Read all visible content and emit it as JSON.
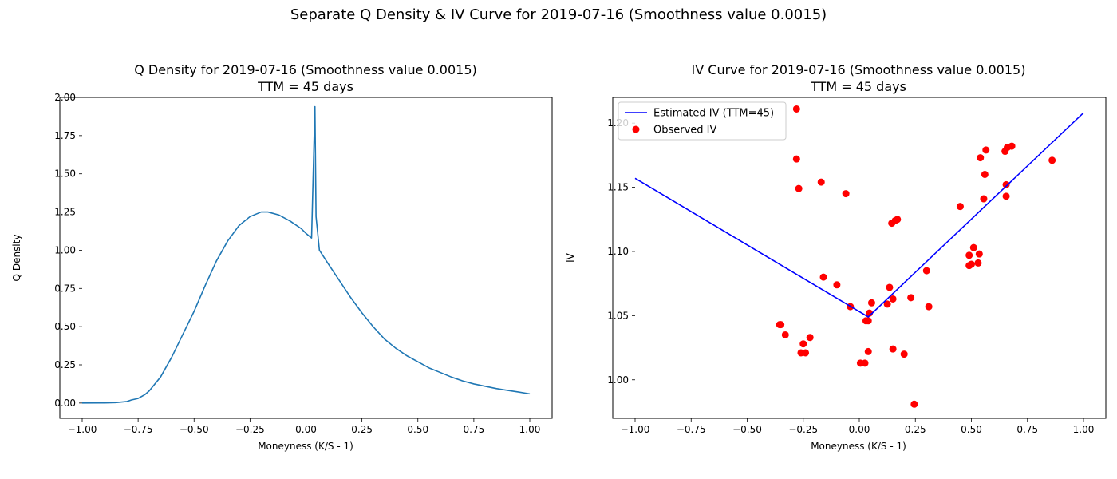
{
  "figure": {
    "suptitle": "Separate Q Density & IV Curve for 2019-07-16 (Smoothness value 0.0015)"
  },
  "chart_data": [
    {
      "type": "line",
      "title_line1": "Q Density for 2019-07-16 (Smoothness value 0.0015)",
      "title_line2": "TTM = 45 days",
      "xlabel": "Moneyness (K/S - 1)",
      "ylabel": "Q Density",
      "xlim": [
        -1.0,
        1.0
      ],
      "ylim": [
        -0.1,
        2.0
      ],
      "xticks": [
        -1.0,
        -0.75,
        -0.5,
        -0.25,
        0.0,
        0.25,
        0.5,
        0.75,
        1.0
      ],
      "xtick_labels": [
        "−1.00",
        "−0.75",
        "−0.50",
        "−0.25",
        "0.00",
        "0.25",
        "0.50",
        "0.75",
        "1.00"
      ],
      "yticks": [
        0.0,
        0.25,
        0.5,
        0.75,
        1.0,
        1.25,
        1.5,
        1.75,
        2.0
      ],
      "ytick_labels": [
        "0.00",
        "0.25",
        "0.50",
        "0.75",
        "1.00",
        "1.25",
        "1.50",
        "1.75",
        "2.00"
      ],
      "grid": false,
      "color": "#1f77b4",
      "series": [
        {
          "x": [
            -1.0,
            -0.9,
            -0.85,
            -0.8,
            -0.78,
            -0.75,
            -0.72,
            -0.7,
            -0.65,
            -0.6,
            -0.55,
            -0.5,
            -0.45,
            -0.4,
            -0.35,
            -0.3,
            -0.25,
            -0.2,
            -0.17,
            -0.12,
            -0.07,
            -0.02,
            0.0,
            0.025,
            0.04,
            0.045,
            0.06,
            0.1,
            0.15,
            0.2,
            0.25,
            0.3,
            0.35,
            0.4,
            0.45,
            0.5,
            0.55,
            0.6,
            0.65,
            0.7,
            0.75,
            0.8,
            0.85,
            0.9,
            0.95,
            1.0
          ],
          "y": [
            0.0,
            0.001,
            0.003,
            0.01,
            0.02,
            0.03,
            0.055,
            0.08,
            0.17,
            0.3,
            0.45,
            0.6,
            0.77,
            0.93,
            1.06,
            1.16,
            1.22,
            1.25,
            1.25,
            1.23,
            1.19,
            1.14,
            1.11,
            1.08,
            1.94,
            1.22,
            1.0,
            0.91,
            0.8,
            0.69,
            0.59,
            0.5,
            0.42,
            0.36,
            0.31,
            0.27,
            0.23,
            0.2,
            0.17,
            0.145,
            0.125,
            0.11,
            0.095,
            0.083,
            0.072,
            0.06
          ]
        }
      ]
    },
    {
      "type": "scatter",
      "title_line1": "IV Curve for 2019-07-16 (Smoothness value 0.0015)",
      "title_line2": "TTM = 45 days",
      "xlabel": "Moneyness (K/S - 1)",
      "ylabel": "IV",
      "xlim": [
        -1.0,
        1.0
      ],
      "ylim": [
        0.97,
        1.22
      ],
      "xticks": [
        -1.0,
        -0.75,
        -0.5,
        -0.25,
        0.0,
        0.25,
        0.5,
        0.75,
        1.0
      ],
      "xtick_labels": [
        "−1.00",
        "−0.75",
        "−0.50",
        "−0.25",
        "0.00",
        "0.25",
        "0.50",
        "0.75",
        "1.00"
      ],
      "yticks": [
        1.0,
        1.05,
        1.1,
        1.15,
        1.2
      ],
      "ytick_labels": [
        "1.00",
        "1.05",
        "1.10",
        "1.15",
        "1.20"
      ],
      "grid": false,
      "legend_position": "top-left",
      "series": [
        {
          "name": "Estimated IV (TTM=45)",
          "kind": "line",
          "color": "#0000ff",
          "x": [
            -1.0,
            0.04,
            1.0
          ],
          "y": [
            1.157,
            1.049,
            1.208
          ]
        },
        {
          "name": "Observed IV",
          "kind": "scatter",
          "color": "#ff0000",
          "x": [
            -0.28,
            -0.28,
            -0.27,
            -0.17,
            -0.06,
            0.17,
            0.16,
            0.145,
            0.45,
            0.54,
            0.565,
            0.56,
            0.65,
            0.66,
            0.68,
            0.86,
            0.655,
            0.555,
            0.655,
            0.51,
            0.49,
            0.535,
            0.53,
            0.5,
            0.49,
            0.3,
            0.135,
            0.125,
            0.15,
            0.23,
            0.055,
            0.045,
            0.04,
            0.03,
            -0.04,
            -0.1,
            -0.16,
            -0.35,
            -0.355,
            -0.33,
            -0.22,
            -0.25,
            -0.26,
            -0.24,
            0.04,
            0.15,
            0.2,
            0.005,
            0.025,
            0.245,
            0.31
          ],
          "y": [
            1.211,
            1.172,
            1.149,
            1.154,
            1.145,
            1.125,
            1.124,
            1.122,
            1.135,
            1.173,
            1.179,
            1.16,
            1.178,
            1.181,
            1.182,
            1.171,
            1.152,
            1.141,
            1.143,
            1.103,
            1.097,
            1.098,
            1.091,
            1.09,
            1.089,
            1.085,
            1.072,
            1.059,
            1.063,
            1.064,
            1.06,
            1.052,
            1.046,
            1.046,
            1.057,
            1.074,
            1.08,
            1.043,
            1.043,
            1.035,
            1.033,
            1.028,
            1.021,
            1.021,
            1.022,
            1.024,
            1.02,
            1.013,
            1.013,
            0.981,
            1.057
          ]
        }
      ]
    }
  ]
}
